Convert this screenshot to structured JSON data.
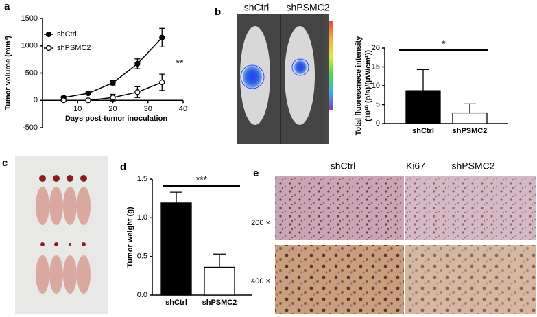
{
  "panel_labels": [
    "a",
    "b",
    "c",
    "d",
    "e"
  ],
  "chart_data": [
    {
      "type": "line",
      "xlabel": "Days post-tumor inoculation",
      "ylabel": "Tumor volume (mm³)",
      "xlim": [
        0,
        40
      ],
      "xticks": [
        10,
        20,
        30,
        40
      ],
      "ylim": [
        -500,
        1500
      ],
      "yticks": [
        -500,
        0,
        500,
        1000,
        1500
      ],
      "annotation": "**",
      "series": [
        {
          "name": "shCtrl",
          "color": "#000000",
          "marker_fill": "#000000",
          "x": [
            6,
            13,
            20,
            27,
            34
          ],
          "values": [
            50,
            130,
            320,
            670,
            1150
          ],
          "errors": [
            20,
            20,
            40,
            90,
            170
          ]
        },
        {
          "name": "shPSMC2",
          "color": "#000000",
          "marker_fill": "#ffffff",
          "x": [
            6,
            13,
            20,
            27,
            34
          ],
          "values": [
            0,
            0,
            50,
            150,
            330
          ],
          "errors": [
            10,
            10,
            60,
            100,
            150
          ]
        }
      ]
    },
    {
      "type": "bar",
      "ylabel": [
        "Total fluorescnece intensity",
        "(10¹⁰ (p/s)/(μW/cm²))"
      ],
      "categories": [
        "shCtrl",
        "shPSMC2"
      ],
      "values": [
        8.7,
        2.8
      ],
      "errors": [
        5.6,
        2.4
      ],
      "colors": [
        "#000000",
        "#ffffff"
      ],
      "ylim": [
        0,
        20
      ],
      "yticks": [
        0,
        5,
        10,
        15,
        20
      ],
      "annotation": "*"
    },
    {
      "type": "bar",
      "ylabel": [
        "Tumor weight (g)"
      ],
      "categories": [
        "shCtrl",
        "shPSMC2"
      ],
      "values": [
        1.19,
        0.36
      ],
      "errors": [
        0.14,
        0.17
      ],
      "colors": [
        "#000000",
        "#ffffff"
      ],
      "ylim": [
        0,
        1.5
      ],
      "yticks": [
        {
          "value": 0,
          "label": "0.0"
        },
        0.5,
        {
          "value": 1,
          "label": "1.0"
        },
        1.5
      ],
      "annotation": "***"
    }
  ],
  "imaging": {
    "groups": [
      "shCtrl",
      "shPSMC2"
    ]
  },
  "histology": {
    "columns": [
      "shCtrl",
      "Ki67",
      "shPSMC2"
    ],
    "rows": [
      "200 ×",
      "400 ×"
    ]
  }
}
